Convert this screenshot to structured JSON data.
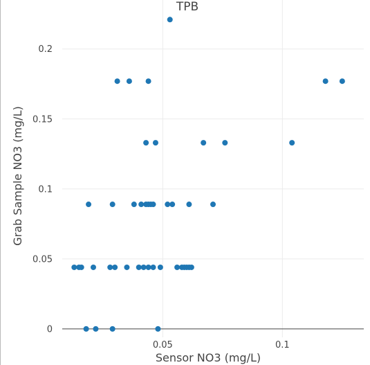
{
  "chart_data": {
    "type": "scatter",
    "title": "TPB",
    "xlabel": "Sensor NO3 (mg/L)",
    "ylabel": "Grab Sample NO3 (mg/L)",
    "xlim": [
      0.008,
      0.134
    ],
    "ylim": [
      -0.006,
      0.235
    ],
    "x_ticks": [
      0.05,
      0.1
    ],
    "x_tick_labels": [
      "0.05",
      "0.1"
    ],
    "y_ticks": [
      0,
      0.05,
      0.1,
      0.15,
      0.2
    ],
    "y_tick_labels": [
      "0",
      "0.05",
      "0.1",
      "0.15",
      "0.2"
    ],
    "grid": true,
    "marker_color": "#1f77b4",
    "points": [
      {
        "x": 0.053,
        "y": 0.221
      },
      {
        "x": 0.031,
        "y": 0.177
      },
      {
        "x": 0.036,
        "y": 0.177
      },
      {
        "x": 0.044,
        "y": 0.177
      },
      {
        "x": 0.118,
        "y": 0.177
      },
      {
        "x": 0.125,
        "y": 0.177
      },
      {
        "x": 0.043,
        "y": 0.133
      },
      {
        "x": 0.047,
        "y": 0.133
      },
      {
        "x": 0.067,
        "y": 0.133
      },
      {
        "x": 0.076,
        "y": 0.133
      },
      {
        "x": 0.104,
        "y": 0.133
      },
      {
        "x": 0.019,
        "y": 0.089
      },
      {
        "x": 0.029,
        "y": 0.089
      },
      {
        "x": 0.038,
        "y": 0.089
      },
      {
        "x": 0.041,
        "y": 0.089
      },
      {
        "x": 0.043,
        "y": 0.089
      },
      {
        "x": 0.044,
        "y": 0.089
      },
      {
        "x": 0.045,
        "y": 0.089
      },
      {
        "x": 0.046,
        "y": 0.089
      },
      {
        "x": 0.052,
        "y": 0.089
      },
      {
        "x": 0.054,
        "y": 0.089
      },
      {
        "x": 0.061,
        "y": 0.089
      },
      {
        "x": 0.071,
        "y": 0.089
      },
      {
        "x": 0.013,
        "y": 0.044
      },
      {
        "x": 0.015,
        "y": 0.044
      },
      {
        "x": 0.016,
        "y": 0.044
      },
      {
        "x": 0.021,
        "y": 0.044
      },
      {
        "x": 0.028,
        "y": 0.044
      },
      {
        "x": 0.03,
        "y": 0.044
      },
      {
        "x": 0.035,
        "y": 0.044
      },
      {
        "x": 0.04,
        "y": 0.044
      },
      {
        "x": 0.042,
        "y": 0.044
      },
      {
        "x": 0.044,
        "y": 0.044
      },
      {
        "x": 0.046,
        "y": 0.044
      },
      {
        "x": 0.049,
        "y": 0.044
      },
      {
        "x": 0.056,
        "y": 0.044
      },
      {
        "x": 0.058,
        "y": 0.044
      },
      {
        "x": 0.059,
        "y": 0.044
      },
      {
        "x": 0.06,
        "y": 0.044
      },
      {
        "x": 0.061,
        "y": 0.044
      },
      {
        "x": 0.062,
        "y": 0.044
      },
      {
        "x": 0.018,
        "y": 0.0
      },
      {
        "x": 0.022,
        "y": 0.0
      },
      {
        "x": 0.029,
        "y": 0.0
      },
      {
        "x": 0.048,
        "y": 0.0
      }
    ]
  }
}
